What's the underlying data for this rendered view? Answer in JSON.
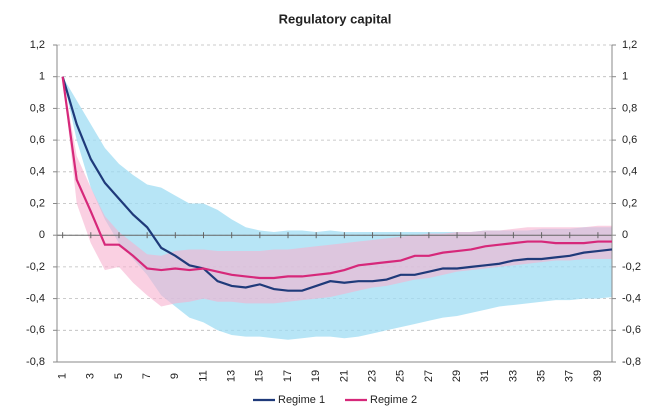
{
  "chart_data": {
    "type": "line",
    "title": "Regulatory capital",
    "x": [
      1,
      2,
      3,
      4,
      5,
      6,
      7,
      8,
      9,
      10,
      11,
      12,
      13,
      14,
      15,
      16,
      17,
      18,
      19,
      20,
      21,
      22,
      23,
      24,
      25,
      26,
      27,
      28,
      29,
      30,
      31,
      32,
      33,
      34,
      35,
      36,
      37,
      38,
      39,
      40
    ],
    "xlim": [
      0.6,
      40
    ],
    "xticks": [
      1,
      3,
      5,
      7,
      9,
      11,
      13,
      15,
      17,
      19,
      21,
      23,
      25,
      27,
      29,
      31,
      33,
      35,
      37,
      39
    ],
    "ylim": [
      -0.8,
      1.2
    ],
    "yticks": [
      {
        "value": -0.8,
        "label": "-0,8"
      },
      {
        "value": -0.6,
        "label": "-0,6"
      },
      {
        "value": -0.4,
        "label": "-0,4"
      },
      {
        "value": -0.2,
        "label": "-0,2"
      },
      0,
      {
        "value": 0.2,
        "label": "0,2"
      },
      {
        "value": 0.4,
        "label": "0,4"
      },
      {
        "value": 0.6,
        "label": "0,6"
      },
      {
        "value": 0.8,
        "label": "0,8"
      },
      1,
      {
        "value": 1.2,
        "label": "1,2"
      }
    ],
    "y2lim": [
      -0.8,
      1.2
    ],
    "y2ticks": [
      {
        "value": -0.8,
        "label": "-0,8"
      },
      {
        "value": -0.6,
        "label": "-0,6"
      },
      {
        "value": -0.4,
        "label": "-0,4"
      },
      {
        "value": -0.2,
        "label": "-0,2"
      },
      0,
      {
        "value": 0.2,
        "label": "0,2"
      },
      {
        "value": 0.4,
        "label": "0,4"
      },
      {
        "value": 0.6,
        "label": "0,6"
      },
      {
        "value": 0.8,
        "label": "0,8"
      },
      1,
      {
        "value": 1.2,
        "label": "1,2"
      }
    ],
    "grid": true,
    "legend": "bottom",
    "series": [
      {
        "name": "Regime 1",
        "color": "#1f3a7a",
        "band_color": "#9fdcf3",
        "values": [
          1,
          0.7,
          0.48,
          0.33,
          0.23,
          0.13,
          0.05,
          -0.08,
          -0.13,
          -0.19,
          -0.21,
          -0.29,
          -0.32,
          -0.33,
          -0.31,
          -0.34,
          -0.35,
          -0.35,
          -0.32,
          -0.29,
          -0.3,
          -0.29,
          -0.29,
          -0.28,
          -0.25,
          -0.25,
          -0.23,
          -0.21,
          -0.21,
          -0.2,
          -0.19,
          -0.18,
          -0.16,
          -0.15,
          -0.15,
          -0.14,
          -0.13,
          -0.11,
          -0.1,
          -0.09
        ],
        "upper": [
          1,
          0.85,
          0.7,
          0.55,
          0.45,
          0.38,
          0.32,
          0.3,
          0.25,
          0.2,
          0.2,
          0.16,
          0.1,
          0.05,
          0.03,
          0.02,
          0.03,
          0.03,
          0.02,
          0.03,
          0.02,
          0.02,
          0.02,
          0.02,
          0.02,
          0.02,
          0.02,
          0.02,
          0.02,
          0.02,
          0.03,
          0.03,
          0.03,
          0.03,
          0.04,
          0.04,
          0.04,
          0.05,
          0.05,
          0.05
        ],
        "lower": [
          1,
          0.6,
          0.3,
          0.1,
          -0.05,
          -0.15,
          -0.25,
          -0.38,
          -0.45,
          -0.52,
          -0.55,
          -0.6,
          -0.63,
          -0.64,
          -0.64,
          -0.65,
          -0.66,
          -0.65,
          -0.64,
          -0.64,
          -0.65,
          -0.64,
          -0.62,
          -0.6,
          -0.58,
          -0.56,
          -0.54,
          -0.52,
          -0.51,
          -0.49,
          -0.47,
          -0.45,
          -0.44,
          -0.43,
          -0.42,
          -0.41,
          -0.41,
          -0.4,
          -0.4,
          -0.39
        ]
      },
      {
        "name": "Regime 2",
        "color": "#d6287a",
        "band_color": "#f7b0cf",
        "values": [
          1,
          0.35,
          0.15,
          -0.06,
          -0.06,
          -0.13,
          -0.21,
          -0.22,
          -0.21,
          -0.22,
          -0.21,
          -0.23,
          -0.25,
          -0.26,
          -0.27,
          -0.27,
          -0.26,
          -0.26,
          -0.25,
          -0.24,
          -0.22,
          -0.19,
          -0.18,
          -0.17,
          -0.16,
          -0.13,
          -0.13,
          -0.11,
          -0.1,
          -0.09,
          -0.07,
          -0.06,
          -0.05,
          -0.04,
          -0.04,
          -0.05,
          -0.05,
          -0.05,
          -0.04,
          -0.04
        ],
        "upper": [
          1,
          0.5,
          0.3,
          0.12,
          0.02,
          -0.05,
          -0.12,
          -0.13,
          -0.1,
          -0.09,
          -0.09,
          -0.1,
          -0.1,
          -0.1,
          -0.1,
          -0.09,
          -0.09,
          -0.08,
          -0.07,
          -0.06,
          -0.05,
          -0.04,
          -0.03,
          -0.02,
          -0.01,
          0,
          0.01,
          0.01,
          0.02,
          0.02,
          0.03,
          0.03,
          0.04,
          0.05,
          0.05,
          0.05,
          0.05,
          0.05,
          0.06,
          0.06
        ],
        "lower": [
          1,
          0.2,
          -0.05,
          -0.22,
          -0.2,
          -0.3,
          -0.38,
          -0.45,
          -0.43,
          -0.42,
          -0.4,
          -0.42,
          -0.42,
          -0.43,
          -0.43,
          -0.43,
          -0.42,
          -0.41,
          -0.4,
          -0.39,
          -0.37,
          -0.35,
          -0.33,
          -0.32,
          -0.3,
          -0.28,
          -0.27,
          -0.25,
          -0.23,
          -0.22,
          -0.21,
          -0.2,
          -0.19,
          -0.18,
          -0.17,
          -0.16,
          -0.16,
          -0.15,
          -0.15,
          -0.15
        ]
      }
    ]
  }
}
